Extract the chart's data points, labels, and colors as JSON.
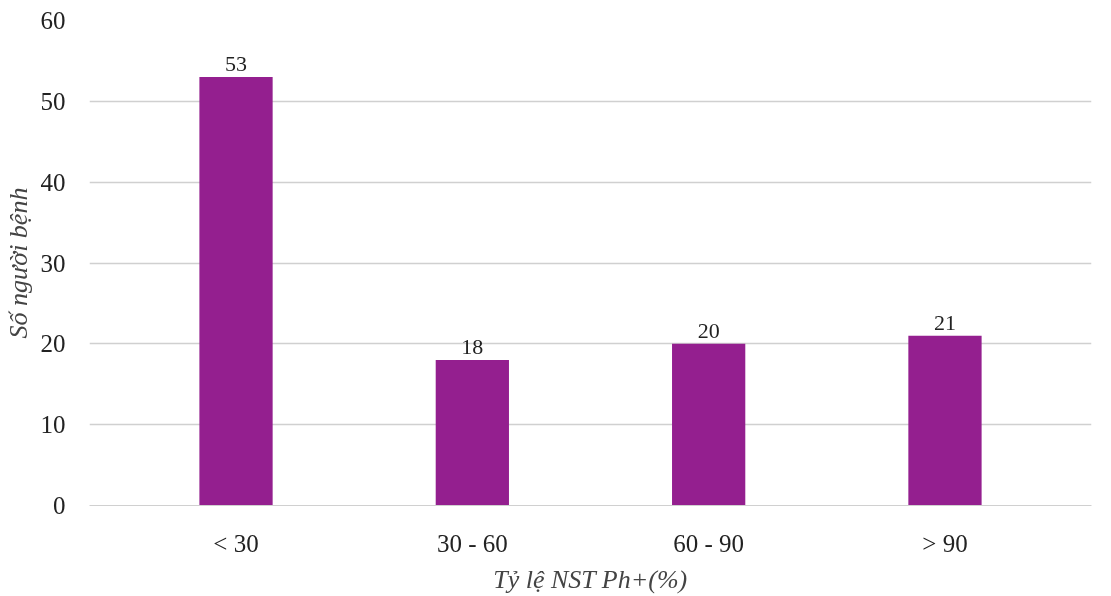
{
  "chart_data": {
    "type": "bar",
    "xlabel": "Tỷ lệ NST Ph+(%)",
    "ylabel": "Số người bệnh",
    "categories": [
      "< 30",
      "30 - 60",
      "60 - 90",
      "> 90"
    ],
    "values": [
      53,
      18,
      20,
      21
    ],
    "color": "#941f8f",
    "ylim": [
      0,
      60
    ],
    "yticks": [
      0,
      10,
      20,
      30,
      40,
      50,
      60
    ],
    "grid": "y",
    "data_labels": true
  }
}
